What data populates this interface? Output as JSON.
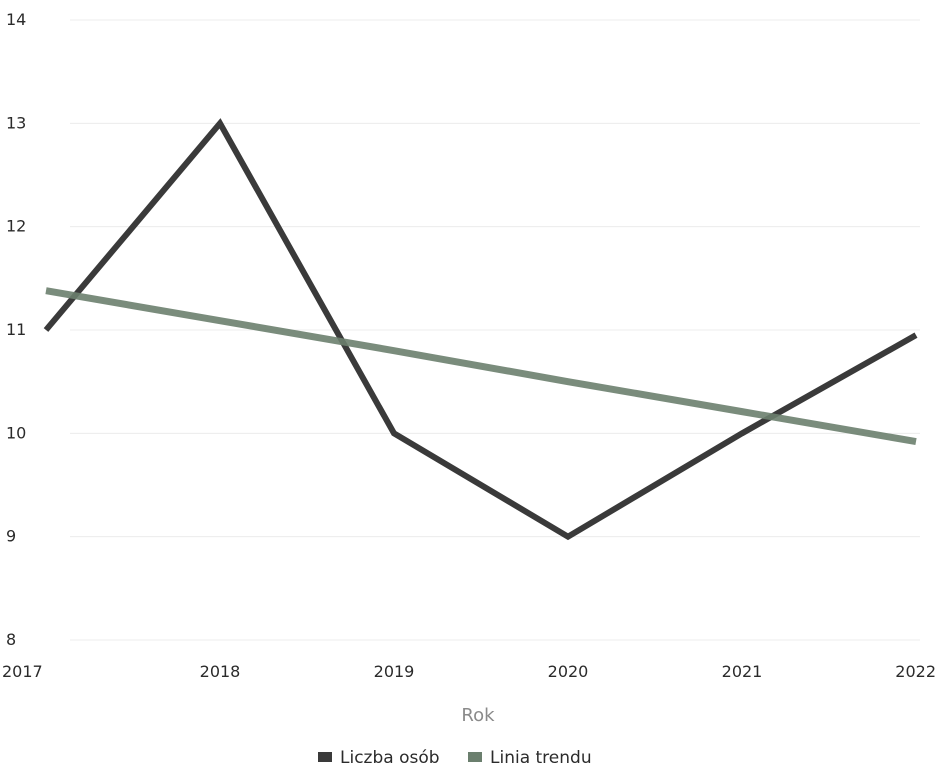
{
  "chart_data": {
    "type": "line",
    "title": "",
    "xlabel": "Rok",
    "ylabel": "",
    "x": [
      "2017",
      "2018",
      "2019",
      "2020",
      "2021",
      "2022"
    ],
    "ylim": [
      8,
      14
    ],
    "yticks": [
      8,
      9,
      10,
      11,
      12,
      13,
      14
    ],
    "grid": true,
    "legend_position": "bottom",
    "series": [
      {
        "name": "Liczba osób",
        "values": [
          11,
          13,
          10,
          9,
          10,
          10.95
        ],
        "color": "#3a3a3a"
      },
      {
        "name": "Linia trendu",
        "values": [
          11.38,
          11.09,
          10.8,
          10.5,
          10.21,
          9.92
        ],
        "color": "#6b7f6e"
      }
    ]
  }
}
